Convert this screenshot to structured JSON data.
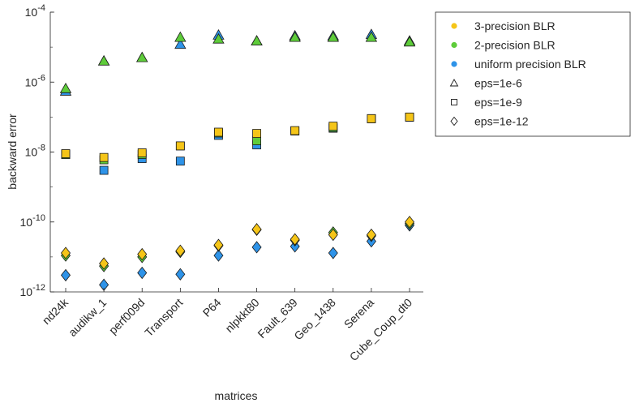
{
  "chart_data": {
    "type": "scatter",
    "xlabel": "matrices",
    "ylabel": "backward error",
    "yscale": "log",
    "ylim": [
      1e-12,
      0.0001
    ],
    "categories": [
      "nd24k",
      "audikw_1",
      "perf009d",
      "Transport",
      "P64",
      "nlpkkt80",
      "Fault_639",
      "Geo_1438",
      "Serena",
      "Cube_Coup_dt0"
    ],
    "y_ticks": [
      {
        "value": 0.0001,
        "base": "10",
        "exp": "-4"
      },
      {
        "value": 1e-06,
        "base": "10",
        "exp": "-6"
      },
      {
        "value": 1e-08,
        "base": "10",
        "exp": "-8"
      },
      {
        "value": 1e-10,
        "base": "10",
        "exp": "-10"
      },
      {
        "value": 1e-12,
        "base": "10",
        "exp": "-12"
      }
    ],
    "legend_position": "top-right",
    "grid": false,
    "colors": {
      "3-precision": "#f5c518",
      "2-precision": "#5ecc3a",
      "uniform": "#2e93e8"
    },
    "legend": [
      {
        "label": "3-precision BLR",
        "kind": "color",
        "key": "3-precision"
      },
      {
        "label": "2-precision BLR",
        "kind": "color",
        "key": "2-precision"
      },
      {
        "label": "uniform precision BLR",
        "kind": "color",
        "key": "uniform"
      },
      {
        "label": "eps=1e-6",
        "kind": "marker",
        "marker": "triangle"
      },
      {
        "label": "eps=1e-9",
        "kind": "marker",
        "marker": "square"
      },
      {
        "label": "eps=1e-12",
        "kind": "marker",
        "marker": "diamond"
      }
    ],
    "series": [
      {
        "precision": "uniform",
        "eps": "1e-6",
        "marker": "triangle",
        "values": [
          5.5e-07,
          4e-06,
          5e-06,
          1.2e-05,
          2.2e-05,
          1.5e-05,
          2.1e-05,
          2.1e-05,
          2.3e-05,
          1.5e-05
        ]
      },
      {
        "precision": "2-precision",
        "eps": "1e-6",
        "marker": "triangle",
        "values": [
          6.5e-07,
          4e-06,
          5e-06,
          1.9e-05,
          1.7e-05,
          1.5e-05,
          1.9e-05,
          1.9e-05,
          1.9e-05,
          1.4e-05
        ]
      },
      {
        "precision": "uniform",
        "eps": "1e-9",
        "marker": "square",
        "values": [
          8.5e-09,
          3e-09,
          6.5e-09,
          5.5e-09,
          3e-08,
          1.6e-08,
          4e-08,
          4.8e-08,
          9e-08,
          1e-07
        ]
      },
      {
        "precision": "2-precision",
        "eps": "1e-9",
        "marker": "square",
        "values": [
          8.5e-09,
          6e-09,
          8.5e-09,
          1.5e-08,
          3.5e-08,
          2.1e-08,
          4e-08,
          5e-08,
          9e-08,
          1e-07
        ]
      },
      {
        "precision": "3-precision",
        "eps": "1e-9",
        "marker": "square",
        "values": [
          9e-09,
          7e-09,
          9.5e-09,
          1.5e-08,
          3.7e-08,
          3.4e-08,
          4.1e-08,
          5.5e-08,
          9e-08,
          1e-07
        ]
      },
      {
        "precision": "uniform",
        "eps": "1e-12",
        "marker": "diamond",
        "values": [
          3e-12,
          1.6e-12,
          3.5e-12,
          3.2e-12,
          1.1e-11,
          1.9e-11,
          2e-11,
          1.3e-11,
          2.8e-11,
          8e-11
        ]
      },
      {
        "precision": "2-precision",
        "eps": "1e-12",
        "marker": "diamond",
        "values": [
          1.1e-11,
          5.5e-12,
          1e-11,
          1.4e-11,
          2.1e-11,
          6e-11,
          3e-11,
          5e-11,
          4e-11,
          9e-11
        ]
      },
      {
        "precision": "3-precision",
        "eps": "1e-12",
        "marker": "diamond",
        "values": [
          1.3e-11,
          6.5e-12,
          1.2e-11,
          1.5e-11,
          2.2e-11,
          6.2e-11,
          3.2e-11,
          4.3e-11,
          4.3e-11,
          1e-10
        ]
      }
    ]
  }
}
